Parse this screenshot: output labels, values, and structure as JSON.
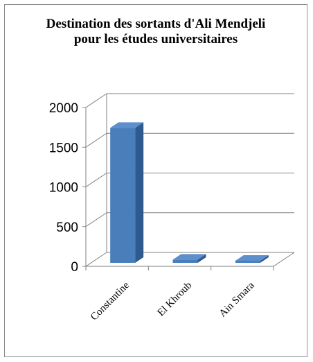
{
  "chart_data": {
    "type": "bar",
    "title": "Destination des sortants d'Ali Mendjeli pour les études universitaires",
    "categories": [
      "Constantine",
      "El Khroub",
      "Ain Smara"
    ],
    "values": [
      1700,
      40,
      10
    ],
    "ylim": [
      0,
      2000
    ],
    "yticks": [
      0,
      500,
      1000,
      1500,
      2000
    ],
    "xlabel": "",
    "ylabel": "",
    "grid": true,
    "legend": "none",
    "colors": {
      "bar_front": "#4a7ebb",
      "bar_side": "#2f5a8f",
      "bar_top": "#5d8fcc",
      "grid": "#808080"
    }
  }
}
